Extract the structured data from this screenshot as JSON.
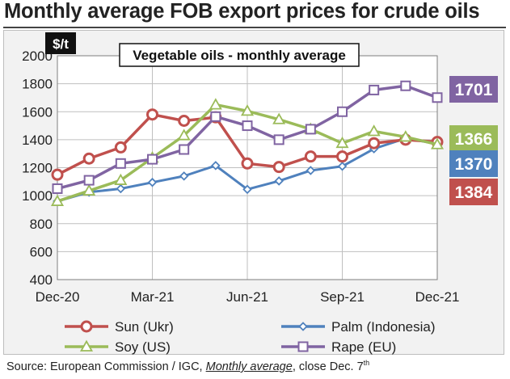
{
  "header": {
    "title": "Monthly average FOB export prices for crude oils"
  },
  "source": {
    "prefix": "Source: European Commission / IGC, ",
    "emphasis": "Monthly average",
    "suffix": ", close Dec. 7",
    "superscript": "th"
  },
  "chart_data": {
    "type": "line",
    "title": "Vegetable oils - monthly average",
    "unit_label": "$/t",
    "ylim": [
      400,
      2000
    ],
    "yticks": [
      400,
      600,
      800,
      1000,
      1200,
      1400,
      1600,
      1800,
      2000
    ],
    "x": [
      "Dec-20",
      "Jan-21",
      "Feb-21",
      "Mar-21",
      "Apr-21",
      "May-21",
      "Jun-21",
      "Jul-21",
      "Aug-21",
      "Sep-21",
      "Oct-21",
      "Nov-21",
      "Dec-21"
    ],
    "xtick_labels": [
      "Dec-20",
      "Mar-21",
      "Jun-21",
      "Sep-21",
      "Dec-21"
    ],
    "grid": true,
    "legend_position": "bottom",
    "series": [
      {
        "name": "Sun (Ukr)",
        "color": "#c0504d",
        "marker": "circle",
        "values": [
          1150,
          1265,
          1345,
          1580,
          1535,
          1560,
          1230,
          1205,
          1280,
          1280,
          1375,
          1400,
          1384
        ],
        "end_label": "1384"
      },
      {
        "name": "Palm (Indonesia)",
        "color": "#4f81bd",
        "marker": "diamond",
        "values": [
          960,
          1025,
          1050,
          1095,
          1140,
          1215,
          1045,
          1105,
          1180,
          1210,
          1335,
          1410,
          1370
        ],
        "end_label": "1370"
      },
      {
        "name": "Soy (US)",
        "color": "#9bbb59",
        "marker": "triangle",
        "values": [
          960,
          1035,
          1110,
          1270,
          1430,
          1650,
          1605,
          1545,
          1475,
          1375,
          1460,
          1420,
          1366
        ],
        "end_label": "1366"
      },
      {
        "name": "Rape (EU)",
        "color": "#8064a2",
        "marker": "square",
        "values": [
          1050,
          1110,
          1230,
          1260,
          1330,
          1565,
          1500,
          1400,
          1475,
          1600,
          1755,
          1785,
          1701
        ],
        "end_label": "1701"
      }
    ]
  }
}
